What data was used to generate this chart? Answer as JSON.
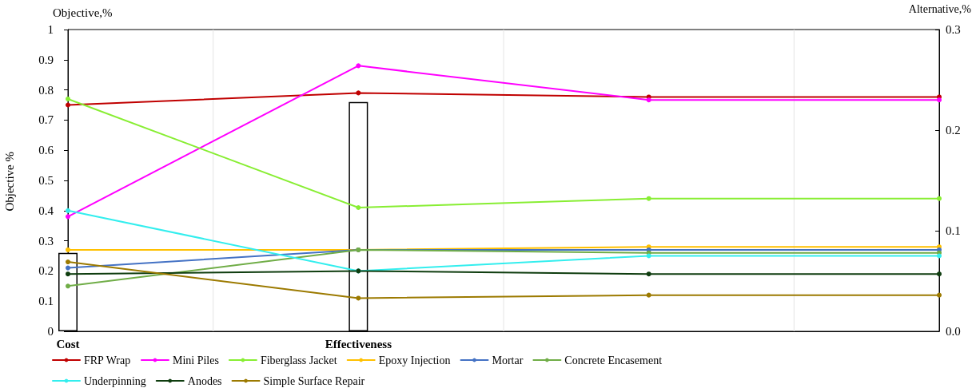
{
  "chart_data": {
    "type": "line",
    "ylabel": "Objective %",
    "y2label": "Alternative,%",
    "annotations": [
      "Objective,%"
    ],
    "categories": [
      "Cost",
      "Effectiveness",
      null,
      null
    ],
    "ylim": [
      0,
      1
    ],
    "yticks": [
      0,
      0.1,
      0.2,
      0.3,
      0.4,
      0.5,
      0.6,
      0.7,
      0.8,
      0.9,
      1
    ],
    "y2lim": [
      0,
      0.3
    ],
    "y2ticks": [
      {
        "value": 0,
        "label": "0.0"
      },
      {
        "value": 0.1,
        "label": "0.1"
      },
      {
        "value": 0.2,
        "label": "0.2"
      },
      {
        "value": 0.3,
        "label": "0.3"
      }
    ],
    "grid": "x",
    "legend": "bottom",
    "marker": "circle",
    "line_style": "solid",
    "series": [
      {
        "type": "bar",
        "color": "#ffffff",
        "values": [
          0.26,
          0.76,
          null,
          null
        ]
      },
      {
        "name": "FRP Wrap",
        "color": "#c00000",
        "axis": "y2",
        "values": [
          0.225,
          0.237,
          0.233,
          0.233
        ]
      },
      {
        "name": "Mini Piles",
        "color": "#ff00ff",
        "axis": "y2",
        "values": [
          0.114,
          0.264,
          0.23,
          0.23
        ]
      },
      {
        "name": "Fiberglass Jacket",
        "color": "#88ee33",
        "axis": "y2",
        "values": [
          0.231,
          0.123,
          0.132,
          0.132
        ]
      },
      {
        "name": "Epoxy Injection",
        "color": "#ffc000",
        "axis": "y2",
        "values": [
          0.081,
          0.081,
          0.084,
          0.084
        ]
      },
      {
        "name": "Mortar",
        "color": "#4472c4",
        "axis": "y2",
        "values": [
          0.063,
          0.081,
          0.081,
          0.081
        ]
      },
      {
        "name": "Concrete Encasement",
        "color": "#70ad47",
        "axis": "y2",
        "values": [
          0.045,
          0.081,
          0.078,
          0.078
        ]
      },
      {
        "name": "Underpinning",
        "color": "#33eeee",
        "axis": "y2",
        "values": [
          0.12,
          0.06,
          0.075,
          0.075
        ]
      },
      {
        "name": "Anodes",
        "color": "#0f3d0f",
        "axis": "y2",
        "values": [
          0.057,
          0.06,
          0.057,
          0.057
        ]
      },
      {
        "name": "Simple Surface Repair",
        "color": "#9c7a00",
        "axis": "y2",
        "values": [
          0.069,
          0.033,
          0.036,
          0.036
        ]
      }
    ]
  }
}
